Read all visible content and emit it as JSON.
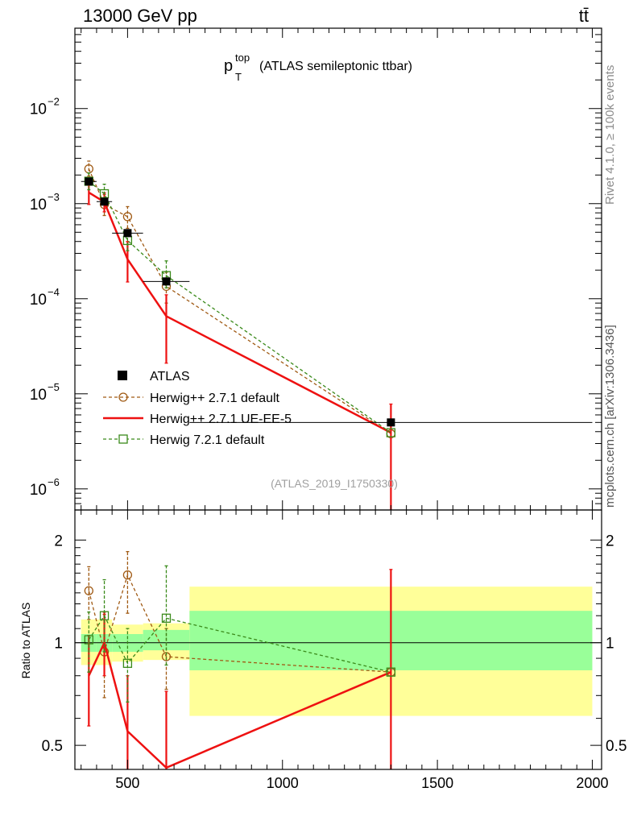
{
  "header": {
    "left": "13000 GeV pp",
    "right": "tt̄"
  },
  "side_labels": {
    "rivet": "Rivet 4.1.0, ≥ 100k events",
    "mcplots": "mcplots.cern.ch [arXiv:1306.3436]"
  },
  "chart_data": [
    {
      "type": "scatter",
      "panel": "main",
      "title_main": "p",
      "title_sup": "top",
      "title_sub": "T",
      "title_rest": "(ATLAS semileptonic ttbar)",
      "watermark": "(ATLAS_2019_I1750330)",
      "yscale": "log",
      "ylim": [
        6e-07,
        0.07
      ],
      "xlim": [
        330,
        2030
      ],
      "y_ticks": [
        {
          "value": 0.01,
          "base": "10",
          "exp": "−2"
        },
        {
          "value": 0.001,
          "base": "10",
          "exp": "−3"
        },
        {
          "value": 0.0001,
          "base": "10",
          "exp": "−4"
        },
        {
          "value": 1e-05,
          "base": "10",
          "exp": "−5"
        },
        {
          "value": 1e-06,
          "base": "10",
          "exp": "−6"
        }
      ],
      "legend_position": "bottom-left",
      "series": [
        {
          "name": "ATLAS",
          "style": "data",
          "color": "#000000",
          "x": [
            375,
            425,
            500,
            625,
            1350
          ],
          "y": [
            0.00171,
            0.00105,
            0.00049,
            0.000152,
            5e-06
          ],
          "xerr": [
            25,
            25,
            50,
            75,
            650
          ]
        },
        {
          "name": "Herwig++ 2.7.1 default",
          "style": "circle-dashed",
          "color": "#a05a14",
          "x": [
            375,
            425,
            500,
            625,
            1350
          ],
          "y": [
            0.00232,
            0.00098,
            0.00073,
            0.000135,
            3.8e-06
          ],
          "ylo": [
            0.00195,
            0.00075,
            0.00055,
            9e-05,
            3.8e-06
          ],
          "yhi": [
            0.0028,
            0.00125,
            0.00093,
            0.00019,
            3.8e-06
          ]
        },
        {
          "name": "Herwig++ 2.7.1 UE-EE-5",
          "style": "line-solid",
          "color": "#ee1111",
          "x": [
            375,
            425,
            500,
            625,
            1350
          ],
          "y": [
            0.00131,
            0.00104,
            0.00026,
            6.55e-05,
            3.9e-06
          ],
          "ylo": [
            0.00098,
            0.00082,
            0.00015,
            2.1e-05,
            6e-07
          ],
          "yhi": [
            0.0018,
            0.0013,
            0.0004,
            0.00011,
            7.8e-06
          ]
        },
        {
          "name": "Herwig 7.2.1 default",
          "style": "square-dashed",
          "color": "#3a8a1a",
          "x": [
            375,
            425,
            500,
            625,
            1350
          ],
          "y": [
            0.00172,
            0.00127,
            0.00041,
            0.000175,
            3.9e-06
          ],
          "ylo": [
            0.0014,
            0.00098,
            0.00032,
            0.00013,
            3.9e-06
          ],
          "yhi": [
            0.0021,
            0.0016,
            0.0005,
            0.00025,
            3.9e-06
          ]
        }
      ]
    },
    {
      "type": "scatter",
      "panel": "ratio",
      "ylabel": "Ratio to ATLAS",
      "yscale": "log",
      "ylim": [
        0.425,
        2.45
      ],
      "xlim": [
        330,
        2030
      ],
      "x_ticks": [
        500,
        1000,
        1500,
        2000
      ],
      "x_tick_labels": [
        "500",
        "1000",
        "1500",
        "2000"
      ],
      "y_ticks": [
        0.5,
        1,
        2
      ],
      "y_tick_labels": [
        "0.5",
        "1",
        "2"
      ],
      "bands": [
        {
          "xmin": 350,
          "xmax": 400,
          "yellow": [
            0.86,
            1.17
          ],
          "green": [
            0.94,
            1.06
          ]
        },
        {
          "xmin": 400,
          "xmax": 450,
          "yellow": [
            0.86,
            1.17
          ],
          "green": [
            0.94,
            1.06
          ]
        },
        {
          "xmin": 450,
          "xmax": 550,
          "yellow": [
            0.88,
            1.13
          ],
          "green": [
            0.94,
            1.06
          ]
        },
        {
          "xmin": 550,
          "xmax": 700,
          "yellow": [
            0.89,
            1.14
          ],
          "green": [
            0.95,
            1.09
          ]
        },
        {
          "xmin": 700,
          "xmax": 2000,
          "yellow": [
            0.61,
            1.46
          ],
          "green": [
            0.83,
            1.24
          ]
        }
      ],
      "series": [
        {
          "name": "Herwig++ 2.7.1 default",
          "style": "circle-dashed",
          "color": "#a05a14",
          "x": [
            375,
            425,
            500,
            625,
            1350
          ],
          "y": [
            1.42,
            0.94,
            1.58,
            0.91,
            0.82
          ],
          "ylo": [
            1.17,
            0.69,
            1.22,
            0.73,
            0.82
          ],
          "yhi": [
            1.67,
            1.21,
            1.85,
            1.1,
            0.82
          ]
        },
        {
          "name": "Herwig++ 2.7.1 UE-EE-5",
          "style": "line-solid",
          "color": "#ee1111",
          "x": [
            375,
            425,
            500,
            625,
            1350
          ],
          "y": [
            0.8,
            1.0,
            0.55,
            0.43,
            0.82
          ],
          "ylo": [
            0.57,
            0.8,
            0.3,
            0.15,
            0.3
          ],
          "yhi": [
            1.05,
            1.23,
            0.8,
            0.72,
            1.64
          ]
        },
        {
          "name": "Herwig 7.2.1 default",
          "style": "square-dashed",
          "color": "#3a8a1a",
          "x": [
            375,
            425,
            500,
            625,
            1350
          ],
          "y": [
            1.02,
            1.2,
            0.87,
            1.18,
            0.82
          ],
          "ylo": [
            0.82,
            0.94,
            0.67,
            0.86,
            0.82
          ],
          "yhi": [
            1.23,
            1.53,
            1.1,
            1.68,
            0.82
          ]
        }
      ]
    }
  ]
}
